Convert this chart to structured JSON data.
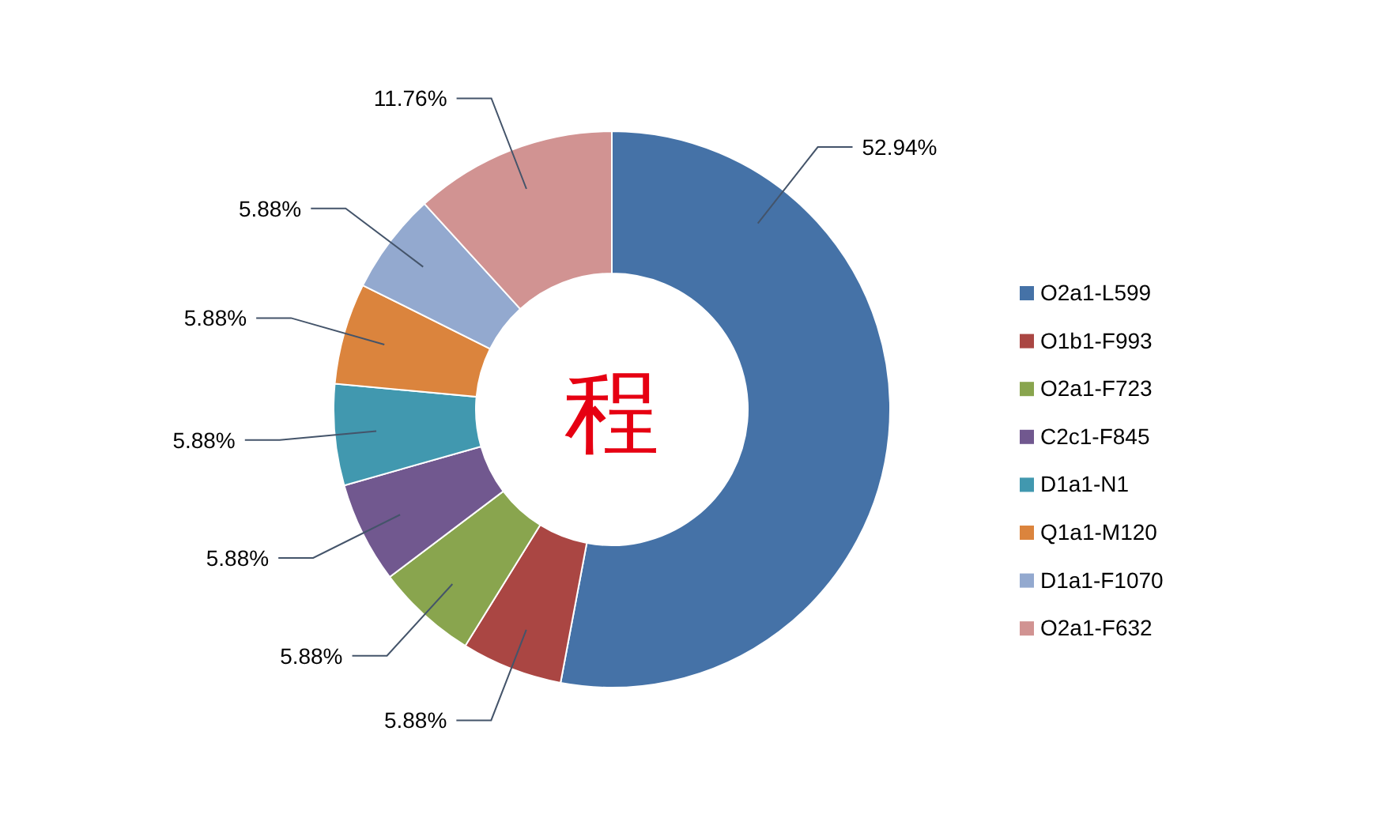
{
  "chart_data": {
    "type": "donut",
    "title": "程",
    "categories": [
      "O2a1-L599",
      "O1b1-F993",
      "O2a1-F723",
      "C2c1-F845",
      "D1a1-N1",
      "Q1a1-M120",
      "D1a1-F1070",
      "O2a1-F632"
    ],
    "values": [
      52.94,
      5.88,
      5.88,
      5.88,
      5.88,
      5.88,
      5.88,
      11.76
    ],
    "value_labels": [
      "52.94%",
      "5.88%",
      "5.88%",
      "5.88%",
      "5.88%",
      "5.88%",
      "5.88%",
      "11.76%"
    ],
    "colors": [
      "#4572a7",
      "#aa4643",
      "#89a54e",
      "#71588f",
      "#4198af",
      "#db843d",
      "#93a9cf",
      "#d19392"
    ],
    "legend": "right"
  }
}
